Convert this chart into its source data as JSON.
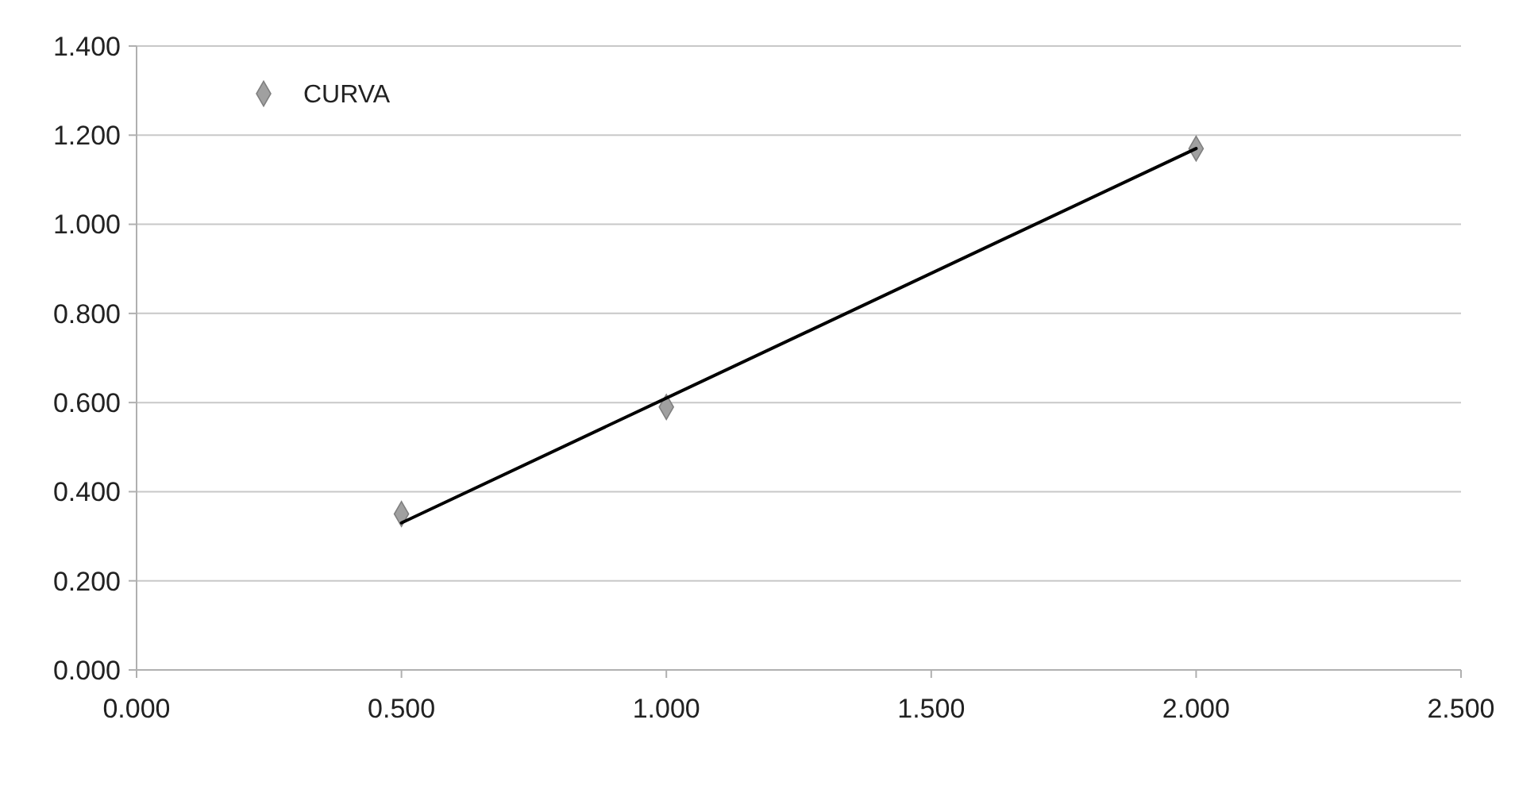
{
  "chart_data": {
    "type": "scatter",
    "xlim": [
      0,
      2.5
    ],
    "xticks": [
      {
        "value": 0,
        "label": "0.000"
      },
      {
        "value": 0.5,
        "label": "0.500"
      },
      {
        "value": 1,
        "label": "1.000"
      },
      {
        "value": 1.5,
        "label": "1.500"
      },
      {
        "value": 2,
        "label": "2.000"
      },
      {
        "value": 2.5,
        "label": "2.500"
      }
    ],
    "ylim": [
      0,
      1.4
    ],
    "yticks": [
      {
        "value": 0,
        "label": "0.000"
      },
      {
        "value": 0.2,
        "label": "0.200"
      },
      {
        "value": 0.4,
        "label": "0.400"
      },
      {
        "value": 0.6,
        "label": "0.600"
      },
      {
        "value": 0.8,
        "label": "0.800"
      },
      {
        "value": 1,
        "label": "1.000"
      },
      {
        "value": 1.2,
        "label": "1.200"
      },
      {
        "value": 1.4,
        "label": "1.400"
      }
    ],
    "grid": "y",
    "legend": "top left",
    "series": [
      {
        "name": "CURVA",
        "color": "#a0a0a0",
        "marker": "diamond",
        "x": [
          0.5,
          1,
          2
        ],
        "values": [
          0.35,
          0.59,
          1.17
        ]
      },
      {
        "type": "line",
        "color": "#000000",
        "marker": "none",
        "x": [
          0.5,
          2
        ],
        "values": [
          0.33,
          1.17
        ],
        "line_style": "solid"
      }
    ]
  }
}
